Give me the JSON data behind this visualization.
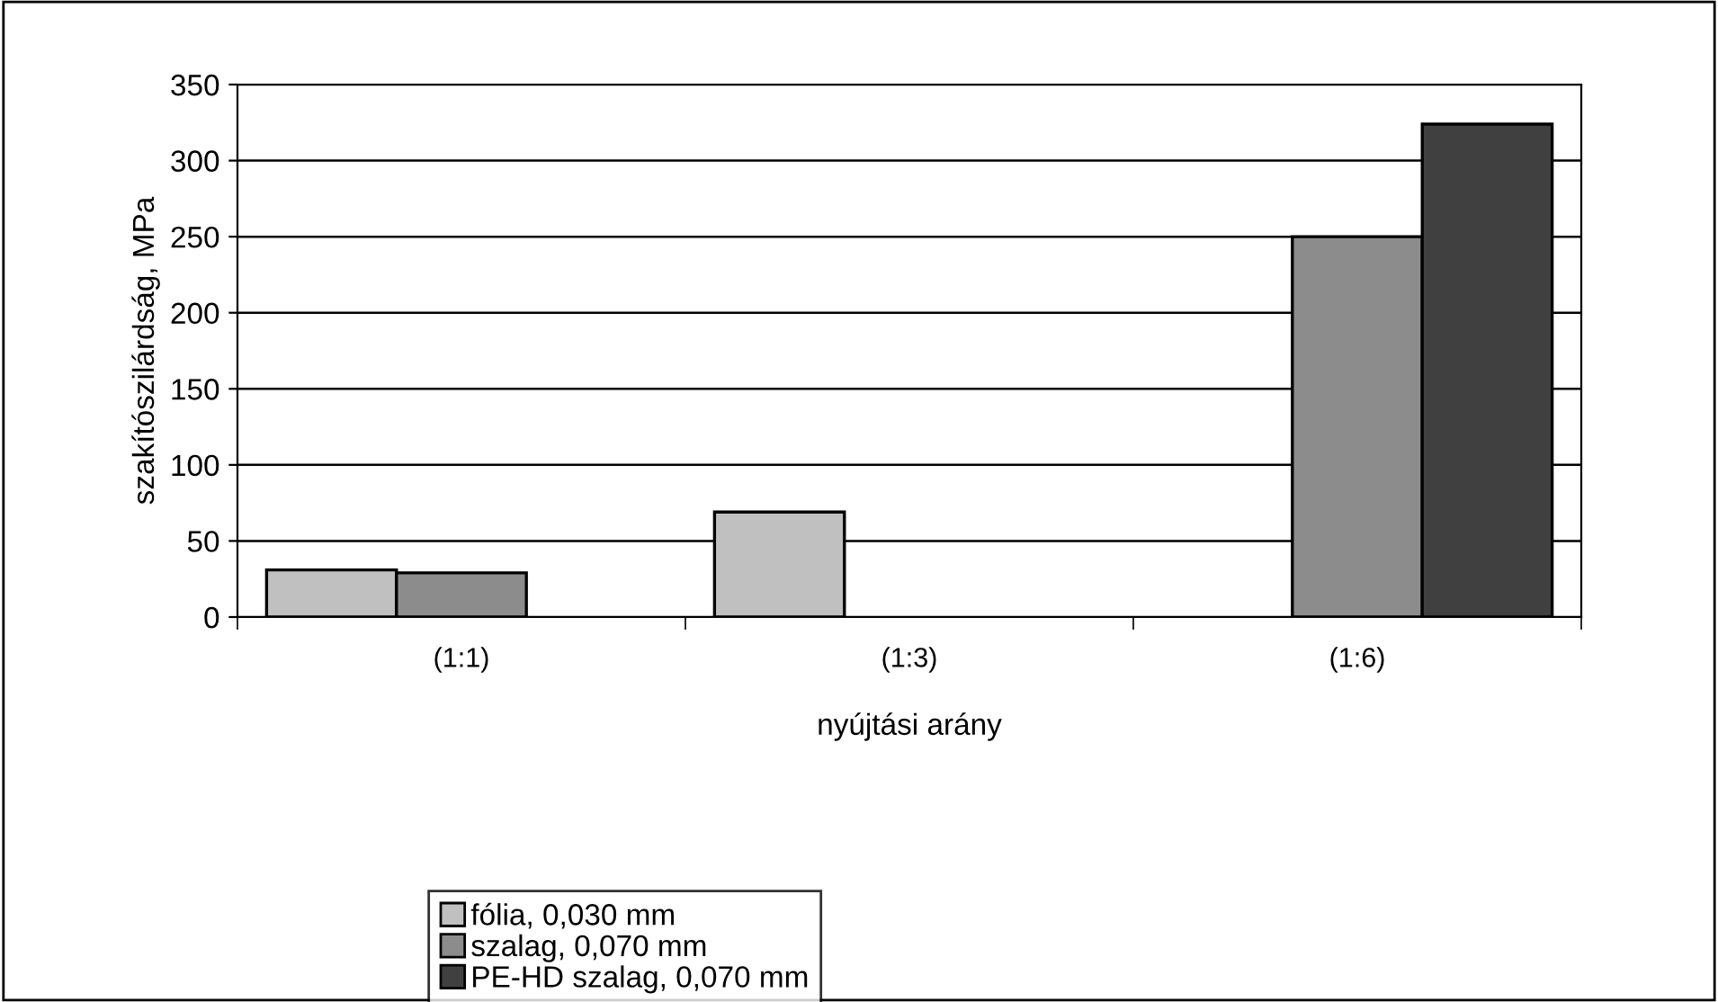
{
  "chart_data": {
    "type": "bar",
    "xlabel": "nyújtási arány",
    "ylabel": "szakítószilárdság, MPa",
    "categories": [
      "(1:1)",
      "(1:3)",
      "(1:6)"
    ],
    "series": [
      {
        "name": "fólia, 0,030 mm",
        "color": "#c0c0c0",
        "values": [
          31,
          69,
          null
        ]
      },
      {
        "name": "szalag, 0,070 mm",
        "color": "#8c8c8c",
        "values": [
          29,
          null,
          250
        ]
      },
      {
        "name": "PE-HD szalag, 0,070 mm",
        "color": "#404040",
        "values": [
          null,
          null,
          324
        ]
      }
    ],
    "ylim": [
      0,
      350
    ],
    "yticks": [
      0,
      50,
      100,
      150,
      200,
      250,
      300,
      350
    ],
    "grid": "y",
    "legend": "bottom"
  }
}
